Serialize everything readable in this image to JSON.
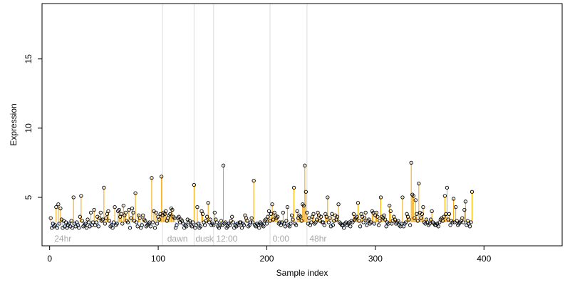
{
  "chart_data": {
    "type": "scatter",
    "title": "",
    "xlabel": "Sample index",
    "ylabel": "Expression",
    "xlim": [
      -7,
      472
    ],
    "ylim": [
      1.5,
      19.0
    ],
    "x_ticks": [
      0,
      100,
      200,
      300,
      400
    ],
    "y_ticks": [
      5,
      10,
      15
    ],
    "baseline": 3.2,
    "grid": false,
    "legend": "none",
    "region_boundaries": [
      104,
      133,
      151,
      203,
      237
    ],
    "region_labels": [
      {
        "x": 3,
        "label": "24hr"
      },
      {
        "x": 107,
        "label": "dawn"
      },
      {
        "x": 133,
        "label": "dusk"
      },
      {
        "x": 152,
        "label": "12:00"
      },
      {
        "x": 204,
        "label": "0:00"
      },
      {
        "x": 238,
        "label": "48hr"
      }
    ],
    "colors": {
      "above_stem": "#f5a300",
      "below_stem": "#9fbbe6",
      "point_stroke": "#000000",
      "boundary": "#dcdcdc",
      "axis": "#000000",
      "region_text": "#a8a8a8"
    },
    "values": [
      3.5,
      2.8,
      3.1,
      2.9,
      3.0,
      4.3,
      2.8,
      4.5,
      3.1,
      4.2,
      3.4,
      2.8,
      3.3,
      2.9,
      3.2,
      2.8,
      3.0,
      3.1,
      2.9,
      3.3,
      2.8,
      5.0,
      3.1,
      2.9,
      3.2,
      3.0,
      2.8,
      3.6,
      5.1,
      3.3,
      2.9,
      3.0,
      3.1,
      2.8,
      3.4,
      3.2,
      2.9,
      3.9,
      3.0,
      3.2,
      4.1,
      3.0,
      3.2,
      3.6,
      2.9,
      3.5,
      3.9,
      3.3,
      3.4,
      5.7,
      3.1,
      3.5,
      3.8,
      4.0,
      3.3,
      2.9,
      3.0,
      2.8,
      3.2,
      4.3,
      3.0,
      3.1,
      4.0,
      4.1,
      3.6,
      3.8,
      3.1,
      4.4,
      3.7,
      3.9,
      3.3,
      3.2,
      4.1,
      2.8,
      3.5,
      4.2,
      3.9,
      3.3,
      5.3,
      3.2,
      2.9,
      3.7,
      3.5,
      2.8,
      3.0,
      3.7,
      3.4,
      3.3,
      2.9,
      3.0,
      3.1,
      3.2,
      2.9,
      6.4,
      3.2,
      4.0,
      2.8,
      3.9,
      3.1,
      3.6,
      3.4,
      3.8,
      6.5,
      3.7,
      3.9,
      3.8,
      4.0,
      3.3,
      3.5,
      3.7,
      3.8,
      4.2,
      4.1,
      3.6,
      3.5,
      2.8,
      3.0,
      3.5,
      3.6,
      3.2,
      3.4,
      3.3,
      3.1,
      2.8,
      3.0,
      2.9,
      3.4,
      3.2,
      3.3,
      3.0,
      2.9,
      3.2,
      5.9,
      2.8,
      3.0,
      4.3,
      3.1,
      2.8,
      2.9,
      4.0,
      3.8,
      3.2,
      3.0,
      3.3,
      3.6,
      4.6,
      3.2,
      3.4,
      3.0,
      3.1,
      3.0,
      3.9,
      3.4,
      3.2,
      2.9,
      2.8,
      3.0,
      3.3,
      3.0,
      7.3,
      3.1,
      3.2,
      2.8,
      2.9,
      3.1,
      3.0,
      3.3,
      3.6,
      3.2,
      2.8,
      3.0,
      2.9,
      3.1,
      3.0,
      3.2,
      3.2,
      2.8,
      3.1,
      3.0,
      3.7,
      3.5,
      3.3,
      2.9,
      3.0,
      3.2,
      3.5,
      3.2,
      6.2,
      3.0,
      2.9,
      3.1,
      3.0,
      2.8,
      3.2,
      3.1,
      3.0,
      2.9,
      3.3,
      3.4,
      3.1,
      3.6,
      4.0,
      3.3,
      3.8,
      4.5,
      3.4,
      3.9,
      3.7,
      3.5,
      3.6,
      3.1,
      3.2,
      3.0,
      3.2,
      3.9,
      3.1,
      2.9,
      3.3,
      4.3,
      3.0,
      2.9,
      3.1,
      3.7,
      3.4,
      5.7,
      3.1,
      3.0,
      4.0,
      3.5,
      3.7,
      3.6,
      3.3,
      4.5,
      4.4,
      7.3,
      5.4,
      3.9,
      3.1,
      3.5,
      3.0,
      3.2,
      3.6,
      3.8,
      3.1,
      3.2,
      3.4,
      3.9,
      3.7,
      3.3,
      3.6,
      3.2,
      3.2,
      3.0,
      3.8,
      3.6,
      5.0,
      3.2,
      3.5,
      2.9,
      3.8,
      3.0,
      3.3,
      3.7,
      3.4,
      3.6,
      4.5,
      3.2,
      3.1,
      3.0,
      3.0,
      2.8,
      3.1,
      3.2,
      3.0,
      3.1,
      3.2,
      2.9,
      3.3,
      3.2,
      3.8,
      3.4,
      3.5,
      3.6,
      4.6,
      3.3,
      2.9,
      3.8,
      3.6,
      3.2,
      3.5,
      3.9,
      3.0,
      3.3,
      3.4,
      3.1,
      3.2,
      4.0,
      3.9,
      3.1,
      3.7,
      3.9,
      3.6,
      3.0,
      3.3,
      5.0,
      3.6,
      3.5,
      3.7,
      3.4,
      2.9,
      3.2,
      3.1,
      4.4,
      4.0,
      3.1,
      3.3,
      3.6,
      3.4,
      3.1,
      3.2,
      3.3,
      3.0,
      2.9,
      3.1,
      5.0,
      2.9,
      3.1,
      3.2,
      3.8,
      3.6,
      3.4,
      3.0,
      7.5,
      5.2,
      5.1,
      3.5,
      4.8,
      3.8,
      3.3,
      6.0,
      3.9,
      3.5,
      3.8,
      4.3,
      3.2,
      3.1,
      3.4,
      3.2,
      3.0,
      3.1,
      3.4,
      4.0,
      3.2,
      3.1,
      3.0,
      3.0,
      3.1,
      2.9,
      3.2,
      3.4,
      3.5,
      3.3,
      3.6,
      5.1,
      3.8,
      5.7,
      3.4,
      3.8,
      3.0,
      3.3,
      3.2,
      4.9,
      3.2,
      4.3,
      3.3,
      3.0,
      3.1,
      3.2,
      3.3,
      3.5,
      3.2,
      4.1,
      4.7,
      3.0,
      3.3,
      3.1,
      2.9,
      3.2,
      5.4
    ]
  }
}
